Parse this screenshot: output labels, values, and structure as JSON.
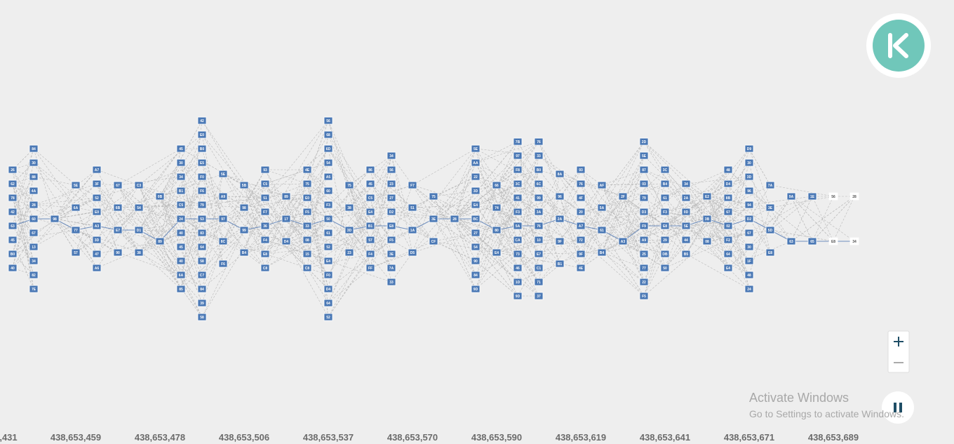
{
  "dag": {
    "columns": [
      [
        "26",
        "62",
        "78",
        "42",
        "63",
        "45",
        "B0",
        "40"
      ],
      [
        "84",
        "30",
        "88",
        "4A",
        "28",
        "60",
        "67",
        "13",
        "34",
        "82",
        "7E"
      ],
      [
        "98"
      ],
      [
        "5E",
        "6A",
        "77",
        "57"
      ],
      [
        "A7",
        "3F",
        "52",
        "E0",
        "A3",
        "3D",
        "47",
        "A6"
      ],
      [
        "67",
        "6B",
        "E7",
        "90"
      ],
      [
        "C3",
        "54",
        "D1",
        "38"
      ],
      [
        "0B",
        "89"
      ],
      [
        "45",
        "30",
        "34",
        "B1",
        "C5",
        "24",
        "40",
        "45",
        "40",
        "6A",
        "85"
      ],
      [
        "42",
        "E0",
        "B0",
        "E5",
        "F0",
        "F6",
        "79",
        "53",
        "83",
        "64",
        "58",
        "C7",
        "84",
        "39",
        "58"
      ],
      [
        "5E",
        "A9",
        "97",
        "8C",
        "F6"
      ],
      [
        "5B",
        "98",
        "99",
        "B4"
      ],
      [
        "93",
        "C5",
        "51",
        "F7",
        "36",
        "F4",
        "E8",
        "C8"
      ],
      [
        "89",
        "17",
        "D4"
      ],
      [
        "4E",
        "75",
        "E0",
        "F5",
        "33",
        "08",
        "15",
        "C8"
      ],
      [
        "56",
        "68",
        "6D",
        "54",
        "A5",
        "60",
        "F3",
        "50",
        "61",
        "52",
        "E4",
        "F0",
        "D4",
        "64",
        "52"
      ],
      [
        "75",
        "38",
        "3D",
        "23"
      ],
      [
        "86",
        "45",
        "C5",
        "E4",
        "B1",
        "57",
        "F4",
        "FF"
      ],
      [
        "34",
        "56",
        "23",
        "27",
        "D2",
        "E8",
        "F5",
        "3E",
        "7A",
        "33"
      ],
      [
        "F7",
        "51",
        "1A",
        "D5"
      ],
      [
        "75",
        "3E",
        "CF"
      ],
      [
        "28"
      ],
      [
        "5E",
        "AA",
        "22",
        "3D",
        "E4",
        "BC",
        "27",
        "54",
        "90",
        "84",
        "9D"
      ],
      [
        "66",
        "74",
        "80",
        "E4"
      ],
      [
        "7B",
        "97",
        "F8",
        "3C",
        "41",
        "F3",
        "5A",
        "CA",
        "73",
        "46",
        "1D",
        "9D"
      ],
      [
        "76",
        "33",
        "B0",
        "6C",
        "99",
        "3A",
        "76",
        "10",
        "E7",
        "C1",
        "71",
        "37"
      ],
      [
        "8A",
        "96",
        "2A",
        "9F",
        "B1"
      ],
      [
        "93",
        "76",
        "4F",
        "20",
        "A7",
        "72",
        "9F",
        "4E"
      ],
      [
        "AF",
        "5A",
        "61",
        "B4"
      ],
      [
        "2F",
        "A3"
      ],
      [
        "2D",
        "5E",
        "87",
        "03",
        "79",
        "D3",
        "F9",
        "A9",
        "25",
        "77",
        "22",
        "F5"
      ],
      [
        "3C",
        "B4",
        "61",
        "F3",
        "E8",
        "29",
        "DB",
        "50"
      ],
      [
        "34",
        "2A",
        "0D",
        "5E",
        "44",
        "B5"
      ],
      [
        "E2",
        "3B",
        "08"
      ],
      [
        "48",
        "D4",
        "8B",
        "67",
        "02",
        "F2",
        "64",
        "E4"
      ],
      [
        "D9",
        "30",
        "3D",
        "96",
        "94",
        "D2",
        "67",
        "30",
        "1F",
        "48",
        "24"
      ],
      [
        "7A",
        "3E",
        "5D",
        "E8"
      ],
      [
        "9A",
        "63"
      ],
      [
        "1E",
        "65"
      ],
      [
        "56",
        "E8"
      ],
      [
        "28",
        "34"
      ]
    ]
  },
  "axis": {
    "labels": [
      ",431",
      "438,653,459",
      "438,653,478",
      "438,653,506",
      "438,653,537",
      "438,653,570",
      "438,653,590",
      "438,653,619",
      "438,653,641",
      "438,653,671",
      "438,653,689"
    ]
  },
  "watermark": {
    "title": "Activate Windows",
    "subtitle": "Go to Settings to activate Windows."
  }
}
